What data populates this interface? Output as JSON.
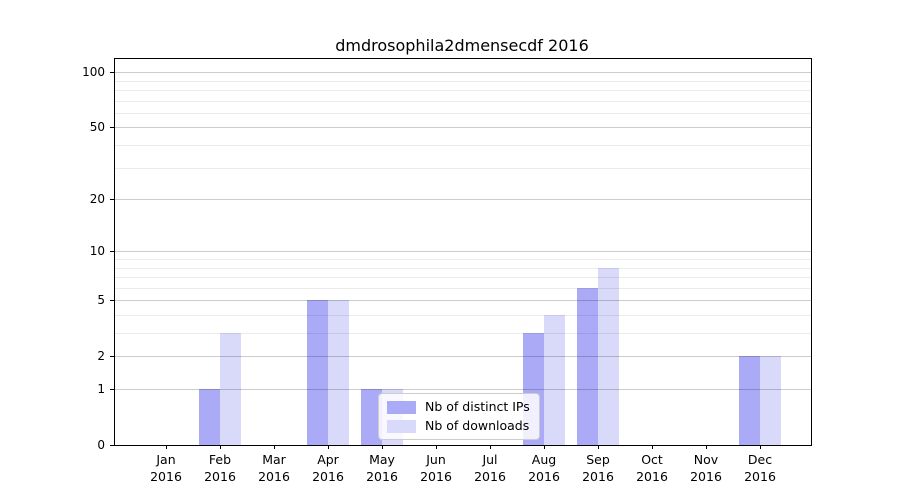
{
  "chart_data": {
    "type": "bar",
    "title": "dmdrosophila2dmensecdf 2016",
    "year_label": "2016",
    "categories": [
      "Jan",
      "Feb",
      "Mar",
      "Apr",
      "May",
      "Jun",
      "Jul",
      "Aug",
      "Sep",
      "Oct",
      "Nov",
      "Dec"
    ],
    "series": [
      {
        "name": "Nb of distinct IPs",
        "color": "#aaaaf6",
        "values": [
          0,
          1,
          0,
          5,
          1,
          0,
          0,
          3,
          6,
          0,
          0,
          2
        ]
      },
      {
        "name": "Nb of downloads",
        "color": "#d9d9f9",
        "values": [
          0,
          3,
          0,
          5,
          1,
          0,
          0,
          4,
          8,
          0,
          0,
          2
        ]
      }
    ],
    "yscale": "log10(1+x)",
    "ylim": [
      0,
      118
    ],
    "yticks": [
      0,
      1,
      2,
      5,
      10,
      20,
      50,
      100
    ],
    "minor_yticks": [
      3,
      4,
      6,
      7,
      8,
      9,
      30,
      40,
      60,
      70,
      80,
      90
    ],
    "grid": true,
    "legend_position": "lower-center",
    "colors": {
      "grid_major": "#cccccc",
      "grid_minor": "#ebebeb",
      "frame": "#000000",
      "legend_border": "#cccccc",
      "text": "#000000"
    }
  }
}
